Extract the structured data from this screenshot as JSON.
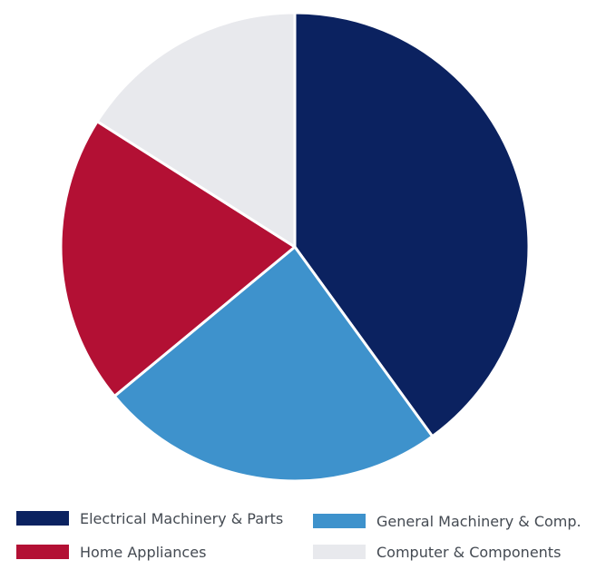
{
  "chart_data": {
    "type": "pie",
    "title": "",
    "start_angle_deg": 0,
    "direction": "clockwise",
    "slices": [
      {
        "label": "Electrical Machinery & Parts",
        "value": 40,
        "color": "#0b2260"
      },
      {
        "label": "General Machinery & Comp.",
        "value": 24,
        "color": "#3e92cc"
      },
      {
        "label": "Home Appliances",
        "value": 20,
        "color": "#b31034"
      },
      {
        "label": "Computer & Components",
        "value": 16,
        "color": "#e8e9ed"
      }
    ],
    "legend": {
      "placement": "bottom",
      "columns": 2
    }
  }
}
